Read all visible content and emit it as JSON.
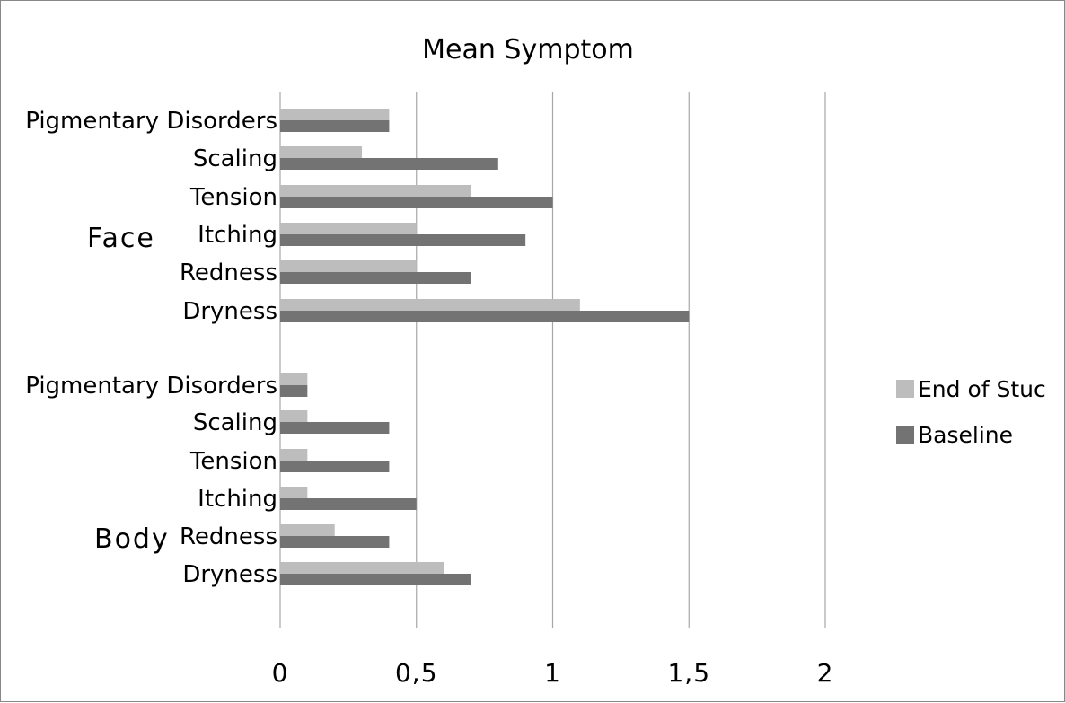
{
  "chart_data": {
    "type": "bar",
    "orientation": "horizontal",
    "title": "Mean  Symptom",
    "xlim": [
      0,
      2
    ],
    "x_ticks": [
      "0",
      "0,5",
      "1",
      "1,5",
      "2"
    ],
    "x_tick_values": [
      0,
      0.5,
      1,
      1.5,
      2
    ],
    "grid": "vertical",
    "legend_position": "right",
    "groups": [
      {
        "name": "Face",
        "categories": [
          "Pigmentary  Disorders",
          "Scaling",
          "Tension",
          "Itching",
          "Redness",
          "Dryness"
        ]
      },
      {
        "name": "Body",
        "categories": [
          "Pigmentary  Disorders",
          "Scaling",
          "Tension",
          "Itching",
          "Redness",
          "Dryness"
        ]
      }
    ],
    "series": [
      {
        "name": "End of Stuc",
        "color": "#bdbdbd",
        "values": [
          0.4,
          0.3,
          0.7,
          0.5,
          0.5,
          1.1,
          0.1,
          0.1,
          0.1,
          0.1,
          0.2,
          0.6
        ]
      },
      {
        "name": "Baseline",
        "color": "#737373",
        "values": [
          0.4,
          0.8,
          1.0,
          0.9,
          0.7,
          1.5,
          0.1,
          0.4,
          0.4,
          0.5,
          0.4,
          0.7
        ]
      }
    ]
  }
}
